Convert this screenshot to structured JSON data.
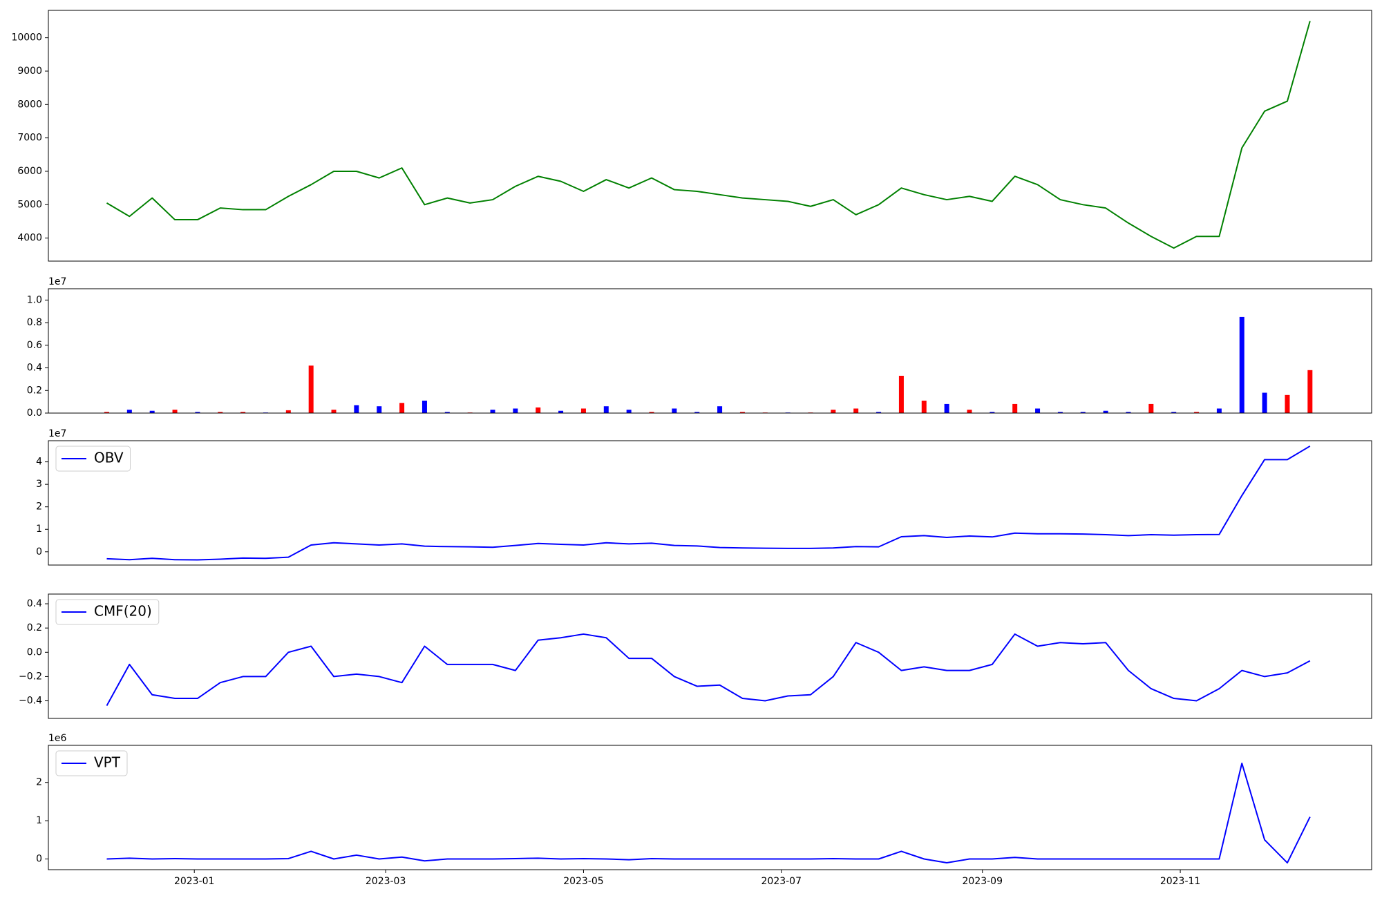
{
  "chart_data": [
    {
      "type": "line",
      "color": "#008000",
      "x": [
        "2022-12-05",
        "2022-12-12",
        "2022-12-19",
        "2022-12-26",
        "2023-01-02",
        "2023-01-09",
        "2023-01-16",
        "2023-01-23",
        "2023-01-30",
        "2023-02-06",
        "2023-02-13",
        "2023-02-20",
        "2023-02-27",
        "2023-03-06",
        "2023-03-13",
        "2023-03-20",
        "2023-03-27",
        "2023-04-03",
        "2023-04-10",
        "2023-04-17",
        "2023-04-24",
        "2023-05-01",
        "2023-05-08",
        "2023-05-15",
        "2023-05-22",
        "2023-05-29",
        "2023-06-05",
        "2023-06-12",
        "2023-06-19",
        "2023-06-26",
        "2023-07-03",
        "2023-07-10",
        "2023-07-17",
        "2023-07-24",
        "2023-07-31",
        "2023-08-07",
        "2023-08-14",
        "2023-08-21",
        "2023-08-28",
        "2023-09-04",
        "2023-09-11",
        "2023-09-18",
        "2023-09-25",
        "2023-10-02",
        "2023-10-09",
        "2023-10-16",
        "2023-10-23",
        "2023-10-30",
        "2023-11-06",
        "2023-11-13",
        "2023-11-20",
        "2023-11-27",
        "2023-12-04",
        "2023-12-11"
      ],
      "values": [
        5050,
        4650,
        5200,
        4550,
        4550,
        4900,
        4850,
        4850,
        5250,
        5600,
        6000,
        6000,
        5800,
        6100,
        5000,
        5200,
        5050,
        5150,
        5550,
        5850,
        5700,
        5400,
        5750,
        5500,
        5800,
        5450,
        5400,
        5300,
        5200,
        5150,
        5100,
        4950,
        5150,
        4700,
        5000,
        5500,
        5300,
        5150,
        5250,
        5100,
        5850,
        5600,
        5150,
        5000,
        4900,
        4450,
        4050,
        3700,
        4050,
        4050,
        6700,
        7800,
        8100,
        10500
      ],
      "xlim": [
        "2022-11-17",
        "2023-12-30"
      ],
      "ylim": [
        3310,
        10820
      ],
      "yticks": [
        4000,
        5000,
        6000,
        7000,
        8000,
        9000,
        10000
      ]
    },
    {
      "type": "bar",
      "x": [
        "2022-12-05",
        "2022-12-12",
        "2022-12-19",
        "2022-12-26",
        "2023-01-02",
        "2023-01-09",
        "2023-01-16",
        "2023-01-23",
        "2023-01-30",
        "2023-02-06",
        "2023-02-13",
        "2023-02-20",
        "2023-02-27",
        "2023-03-06",
        "2023-03-13",
        "2023-03-20",
        "2023-03-27",
        "2023-04-03",
        "2023-04-10",
        "2023-04-17",
        "2023-04-24",
        "2023-05-01",
        "2023-05-08",
        "2023-05-15",
        "2023-05-22",
        "2023-05-29",
        "2023-06-05",
        "2023-06-12",
        "2023-06-19",
        "2023-06-26",
        "2023-07-03",
        "2023-07-10",
        "2023-07-17",
        "2023-07-24",
        "2023-07-31",
        "2023-08-07",
        "2023-08-14",
        "2023-08-21",
        "2023-08-28",
        "2023-09-04",
        "2023-09-11",
        "2023-09-18",
        "2023-09-25",
        "2023-10-02",
        "2023-10-09",
        "2023-10-16",
        "2023-10-23",
        "2023-10-30",
        "2023-11-06",
        "2023-11-13",
        "2023-11-20",
        "2023-11-27",
        "2023-12-04",
        "2023-12-11"
      ],
      "values": [
        100000,
        300000,
        200000,
        300000,
        100000,
        100000,
        100000,
        50000,
        250000,
        4200000,
        300000,
        700000,
        600000,
        900000,
        1100000,
        100000,
        50000,
        300000,
        400000,
        500000,
        200000,
        400000,
        600000,
        300000,
        100000,
        400000,
        100000,
        600000,
        100000,
        50000,
        50000,
        50000,
        300000,
        400000,
        100000,
        3300000,
        1100000,
        800000,
        300000,
        100000,
        800000,
        400000,
        100000,
        100000,
        200000,
        100000,
        800000,
        100000,
        100000,
        400000,
        8500000,
        1800000,
        1600000,
        3800000
      ],
      "colors": [
        "#ff0000",
        "#0000ff",
        "#0000ff",
        "#ff0000",
        "#0000ff",
        "#ff0000",
        "#ff0000",
        "#0000ff",
        "#ff0000",
        "#ff0000",
        "#ff0000",
        "#0000ff",
        "#0000ff",
        "#ff0000",
        "#0000ff",
        "#0000ff",
        "#ff0000",
        "#0000ff",
        "#0000ff",
        "#ff0000",
        "#0000ff",
        "#ff0000",
        "#0000ff",
        "#0000ff",
        "#ff0000",
        "#0000ff",
        "#0000ff",
        "#0000ff",
        "#ff0000",
        "#ff0000",
        "#0000ff",
        "#ff0000",
        "#ff0000",
        "#ff0000",
        "#0000ff",
        "#ff0000",
        "#ff0000",
        "#0000ff",
        "#ff0000",
        "#0000ff",
        "#ff0000",
        "#0000ff",
        "#0000ff",
        "#0000ff",
        "#0000ff",
        "#0000ff",
        "#ff0000",
        "#0000ff",
        "#ff0000",
        "#0000ff",
        "#0000ff",
        "#0000ff",
        "#ff0000",
        "#ff0000"
      ],
      "xlim": [
        "2022-11-17",
        "2023-12-30"
      ],
      "ylim": [
        0,
        11000000
      ],
      "y_offset_label": "1e7",
      "yticks": [
        {
          "value": 0,
          "label": "0.0"
        },
        {
          "value": 2000000,
          "label": "0.2"
        },
        {
          "value": 4000000,
          "label": "0.4"
        },
        {
          "value": 6000000,
          "label": "0.6"
        },
        {
          "value": 8000000,
          "label": "0.8"
        },
        {
          "value": 10000000,
          "label": "1.0"
        }
      ]
    },
    {
      "type": "line",
      "legend": "upper left",
      "x": [
        "2022-12-05",
        "2022-12-12",
        "2022-12-19",
        "2022-12-26",
        "2023-01-02",
        "2023-01-09",
        "2023-01-16",
        "2023-01-23",
        "2023-01-30",
        "2023-02-06",
        "2023-02-13",
        "2023-02-20",
        "2023-02-27",
        "2023-03-06",
        "2023-03-13",
        "2023-03-20",
        "2023-03-27",
        "2023-04-03",
        "2023-04-10",
        "2023-04-17",
        "2023-04-24",
        "2023-05-01",
        "2023-05-08",
        "2023-05-15",
        "2023-05-22",
        "2023-05-29",
        "2023-06-05",
        "2023-06-12",
        "2023-06-19",
        "2023-06-26",
        "2023-07-03",
        "2023-07-10",
        "2023-07-17",
        "2023-07-24",
        "2023-07-31",
        "2023-08-07",
        "2023-08-14",
        "2023-08-21",
        "2023-08-28",
        "2023-09-04",
        "2023-09-11",
        "2023-09-18",
        "2023-09-25",
        "2023-10-02",
        "2023-10-09",
        "2023-10-16",
        "2023-10-23",
        "2023-10-30",
        "2023-11-06",
        "2023-11-13",
        "2023-11-20",
        "2023-11-27",
        "2023-12-04",
        "2023-12-11"
      ],
      "series": [
        {
          "name": "OBV",
          "color": "#0000ff",
          "values": [
            -3100000,
            -3500000,
            -2900000,
            -3500000,
            -3600000,
            -3300000,
            -2800000,
            -2900000,
            -2400000,
            3000000,
            4000000,
            3500000,
            3000000,
            3500000,
            2500000,
            2300000,
            2200000,
            2000000,
            2800000,
            3700000,
            3300000,
            3000000,
            4000000,
            3500000,
            3800000,
            2800000,
            2600000,
            1900000,
            1700000,
            1600000,
            1500000,
            1500000,
            1700000,
            2300000,
            2200000,
            6700000,
            7200000,
            6400000,
            7000000,
            6600000,
            8300000,
            8000000,
            8000000,
            7900000,
            7600000,
            7200000,
            7600000,
            7400000,
            7600000,
            7700000,
            25000000,
            41000000,
            41000000,
            47000000
          ]
        }
      ],
      "xlim": [
        "2022-11-17",
        "2023-12-30"
      ],
      "ylim": [
        -5900000,
        49400000
      ],
      "y_offset_label": "1e7",
      "yticks": [
        {
          "value": 0,
          "label": "0"
        },
        {
          "value": 10000000,
          "label": "1"
        },
        {
          "value": 20000000,
          "label": "2"
        },
        {
          "value": 30000000,
          "label": "3"
        },
        {
          "value": 40000000,
          "label": "4"
        }
      ]
    },
    {
      "type": "line",
      "legend": "upper left",
      "x": [
        "2022-12-05",
        "2022-12-12",
        "2022-12-19",
        "2022-12-26",
        "2023-01-02",
        "2023-01-09",
        "2023-01-16",
        "2023-01-23",
        "2023-01-30",
        "2023-02-06",
        "2023-02-13",
        "2023-02-20",
        "2023-02-27",
        "2023-03-06",
        "2023-03-13",
        "2023-03-20",
        "2023-03-27",
        "2023-04-03",
        "2023-04-10",
        "2023-04-17",
        "2023-04-24",
        "2023-05-01",
        "2023-05-08",
        "2023-05-15",
        "2023-05-22",
        "2023-05-29",
        "2023-06-05",
        "2023-06-12",
        "2023-06-19",
        "2023-06-26",
        "2023-07-03",
        "2023-07-10",
        "2023-07-17",
        "2023-07-24",
        "2023-07-31",
        "2023-08-07",
        "2023-08-14",
        "2023-08-21",
        "2023-08-28",
        "2023-09-04",
        "2023-09-11",
        "2023-09-18",
        "2023-09-25",
        "2023-10-02",
        "2023-10-09",
        "2023-10-16",
        "2023-10-23",
        "2023-10-30",
        "2023-11-06",
        "2023-11-13",
        "2023-11-20",
        "2023-11-27",
        "2023-12-04",
        "2023-12-11"
      ],
      "series": [
        {
          "name": "CMF(20)",
          "color": "#0000ff",
          "values": [
            -0.44,
            -0.1,
            -0.35,
            -0.38,
            -0.38,
            -0.25,
            -0.2,
            -0.2,
            0.0,
            0.05,
            -0.2,
            -0.18,
            -0.2,
            -0.25,
            0.05,
            -0.1,
            -0.1,
            -0.1,
            -0.15,
            0.1,
            0.12,
            0.15,
            0.12,
            -0.05,
            -0.05,
            -0.2,
            -0.28,
            -0.27,
            -0.38,
            -0.4,
            -0.36,
            -0.35,
            -0.2,
            0.08,
            0.0,
            -0.15,
            -0.12,
            -0.15,
            -0.15,
            -0.1,
            0.15,
            0.05,
            0.08,
            0.07,
            0.08,
            -0.15,
            -0.3,
            -0.38,
            -0.4,
            -0.3,
            -0.15,
            -0.2,
            -0.17,
            -0.07
          ]
        }
      ],
      "xlim": [
        "2022-11-17",
        "2023-12-30"
      ],
      "ylim": [
        -0.545,
        0.48
      ],
      "yticks": [
        {
          "value": -0.4,
          "label": "−0.4"
        },
        {
          "value": -0.2,
          "label": "−0.2"
        },
        {
          "value": 0,
          "label": "0.0"
        },
        0.2,
        0.4
      ]
    },
    {
      "type": "line",
      "legend": "upper left",
      "x": [
        "2022-12-05",
        "2022-12-12",
        "2022-12-19",
        "2022-12-26",
        "2023-01-02",
        "2023-01-09",
        "2023-01-16",
        "2023-01-23",
        "2023-01-30",
        "2023-02-06",
        "2023-02-13",
        "2023-02-20",
        "2023-02-27",
        "2023-03-06",
        "2023-03-13",
        "2023-03-20",
        "2023-03-27",
        "2023-04-03",
        "2023-04-10",
        "2023-04-17",
        "2023-04-24",
        "2023-05-01",
        "2023-05-08",
        "2023-05-15",
        "2023-05-22",
        "2023-05-29",
        "2023-06-05",
        "2023-06-12",
        "2023-06-19",
        "2023-06-26",
        "2023-07-03",
        "2023-07-10",
        "2023-07-17",
        "2023-07-24",
        "2023-07-31",
        "2023-08-07",
        "2023-08-14",
        "2023-08-21",
        "2023-08-28",
        "2023-09-04",
        "2023-09-11",
        "2023-09-18",
        "2023-09-25",
        "2023-10-02",
        "2023-10-09",
        "2023-10-16",
        "2023-10-23",
        "2023-10-30",
        "2023-11-06",
        "2023-11-13",
        "2023-11-20",
        "2023-11-27",
        "2023-12-04",
        "2023-12-11"
      ],
      "series": [
        {
          "name": "VPT",
          "color": "#0000ff",
          "values": [
            0,
            20000,
            0,
            10000,
            0,
            0,
            0,
            0,
            10000,
            200000,
            0,
            100000,
            0,
            50000,
            -50000,
            0,
            0,
            0,
            10000,
            20000,
            0,
            10000,
            0,
            -20000,
            10000,
            0,
            0,
            0,
            0,
            0,
            0,
            0,
            10000,
            0,
            0,
            200000,
            0,
            -100000,
            0,
            0,
            40000,
            0,
            0,
            0,
            0,
            0,
            0,
            0,
            0,
            0,
            2500000,
            500000,
            -100000,
            1100000
          ]
        }
      ],
      "xlim": [
        "2022-11-17",
        "2023-12-30"
      ],
      "ylim": [
        -280000,
        2970000
      ],
      "y_offset_label": "1e6",
      "yticks": [
        {
          "value": 0,
          "label": "0"
        },
        {
          "value": 1000000,
          "label": "1"
        },
        {
          "value": 2000000,
          "label": "2"
        }
      ],
      "xticks": [
        {
          "value": "2023-01-01",
          "label": "2023-01"
        },
        {
          "value": "2023-03-01",
          "label": "2023-03"
        },
        {
          "value": "2023-05-01",
          "label": "2023-05"
        },
        {
          "value": "2023-07-01",
          "label": "2023-07"
        },
        {
          "value": "2023-09-01",
          "label": "2023-09"
        },
        {
          "value": "2023-11-01",
          "label": "2023-11"
        }
      ]
    }
  ]
}
